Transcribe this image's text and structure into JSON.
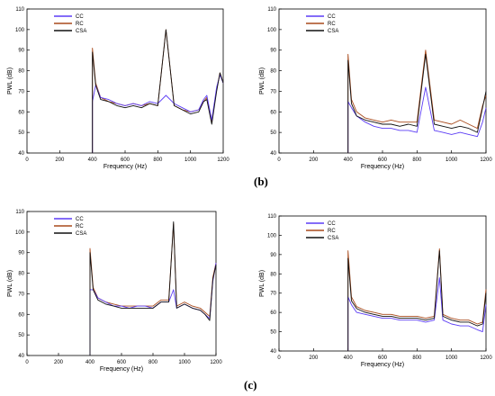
{
  "captions": [
    "(b)",
    "(c)"
  ],
  "colors": {
    "CC": "#5b3cf5",
    "RC": "#a84a1c",
    "CSA": "#111111"
  },
  "chart_data": [
    {
      "type": "line",
      "xlabel": "Frequency (Hz)",
      "ylabel": "PWL (dB)",
      "xlim": [
        0,
        1200
      ],
      "ylim": [
        40,
        110
      ],
      "xticks": [
        0,
        200,
        400,
        600,
        800,
        1000,
        1200
      ],
      "yticks": [
        40,
        50,
        60,
        70,
        80,
        90,
        100,
        110
      ],
      "grid": false,
      "legend": "top-left",
      "series": [
        {
          "name": "CC",
          "x": [
            400,
            420,
            450,
            500,
            550,
            600,
            650,
            700,
            750,
            800,
            850,
            900,
            950,
            1000,
            1050,
            1080,
            1100,
            1130,
            1160,
            1180,
            1200
          ],
          "y": [
            65,
            73,
            67,
            66,
            64,
            63,
            64,
            63,
            65,
            64,
            68,
            64,
            62,
            60,
            61,
            66,
            68,
            56,
            72,
            78,
            74
          ]
        },
        {
          "name": "RC",
          "x": [
            400,
            420,
            450,
            500,
            550,
            600,
            650,
            700,
            750,
            800,
            850,
            900,
            950,
            1000,
            1050,
            1080,
            1100,
            1130,
            1160,
            1180,
            1200
          ],
          "y": [
            91,
            74,
            67,
            65,
            64,
            63,
            64,
            63,
            64,
            63,
            100,
            63,
            61,
            60,
            61,
            65,
            67,
            55,
            71,
            79,
            74
          ]
        },
        {
          "name": "CSA",
          "x": [
            400,
            420,
            450,
            500,
            550,
            600,
            650,
            700,
            750,
            800,
            850,
            900,
            950,
            1000,
            1050,
            1080,
            1100,
            1130,
            1160,
            1180,
            1200
          ],
          "y": [
            89,
            73,
            66,
            65,
            63,
            62,
            63,
            62,
            64,
            63,
            100,
            63,
            61,
            59,
            60,
            65,
            66,
            54,
            70,
            79,
            74
          ]
        }
      ]
    },
    {
      "type": "line",
      "xlabel": "Frequency (Hz)",
      "ylabel": "PWL (dB)",
      "xlim": [
        0,
        1200
      ],
      "ylim": [
        40,
        110
      ],
      "xticks": [
        0,
        200,
        400,
        600,
        800,
        1000,
        1200
      ],
      "yticks": [
        40,
        50,
        60,
        70,
        80,
        90,
        100,
        110
      ],
      "grid": false,
      "legend": "top-left",
      "series": [
        {
          "name": "CC",
          "x": [
            400,
            420,
            450,
            500,
            550,
            600,
            650,
            700,
            750,
            800,
            850,
            900,
            950,
            1000,
            1050,
            1100,
            1150,
            1180,
            1200
          ],
          "y": [
            65,
            62,
            58,
            55,
            53,
            52,
            52,
            51,
            51,
            50,
            72,
            51,
            50,
            49,
            50,
            49,
            48,
            55,
            62
          ]
        },
        {
          "name": "RC",
          "x": [
            400,
            420,
            450,
            500,
            550,
            600,
            650,
            700,
            750,
            800,
            850,
            900,
            950,
            1000,
            1050,
            1100,
            1150,
            1180,
            1200
          ],
          "y": [
            88,
            66,
            60,
            57,
            56,
            55,
            56,
            55,
            55,
            55,
            90,
            56,
            55,
            54,
            56,
            54,
            52,
            63,
            68
          ]
        },
        {
          "name": "CSA",
          "x": [
            400,
            420,
            450,
            500,
            550,
            600,
            650,
            700,
            750,
            800,
            850,
            900,
            950,
            1000,
            1050,
            1100,
            1150,
            1180,
            1200
          ],
          "y": [
            85,
            64,
            58,
            56,
            55,
            54,
            54,
            53,
            54,
            53,
            88,
            54,
            53,
            52,
            53,
            52,
            50,
            62,
            70
          ]
        }
      ]
    },
    {
      "type": "line",
      "xlabel": "Frequency (Hz)",
      "ylabel": "PWL (dB)",
      "xlim": [
        0,
        1200
      ],
      "ylim": [
        40,
        110
      ],
      "xticks": [
        0,
        200,
        400,
        600,
        800,
        1000,
        1200
      ],
      "yticks": [
        40,
        50,
        60,
        70,
        80,
        90,
        100,
        110
      ],
      "grid": false,
      "legend": "top-left",
      "series": [
        {
          "name": "CC",
          "x": [
            400,
            420,
            450,
            500,
            550,
            600,
            650,
            700,
            750,
            800,
            850,
            900,
            930,
            950,
            1000,
            1050,
            1100,
            1130,
            1160,
            1180,
            1200
          ],
          "y": [
            72,
            72,
            68,
            66,
            64,
            64,
            63,
            64,
            64,
            63,
            66,
            66,
            72,
            63,
            65,
            63,
            62,
            60,
            58,
            76,
            85
          ]
        },
        {
          "name": "RC",
          "x": [
            400,
            420,
            450,
            500,
            550,
            600,
            650,
            700,
            750,
            800,
            850,
            900,
            930,
            950,
            1000,
            1050,
            1100,
            1130,
            1160,
            1180,
            1200
          ],
          "y": [
            92,
            73,
            68,
            66,
            65,
            64,
            64,
            64,
            64,
            64,
            67,
            67,
            104,
            64,
            66,
            64,
            63,
            61,
            59,
            78,
            85
          ]
        },
        {
          "name": "CSA",
          "x": [
            400,
            420,
            450,
            500,
            550,
            600,
            650,
            700,
            750,
            800,
            850,
            900,
            930,
            950,
            1000,
            1050,
            1100,
            1130,
            1160,
            1180,
            1200
          ],
          "y": [
            90,
            72,
            67,
            65,
            64,
            63,
            63,
            63,
            63,
            63,
            66,
            66,
            105,
            63,
            65,
            63,
            62,
            60,
            57,
            77,
            84
          ]
        }
      ]
    },
    {
      "type": "line",
      "xlabel": "Frequency (Hz)",
      "ylabel": "PWL (dB)",
      "xlim": [
        0,
        1200
      ],
      "ylim": [
        40,
        110
      ],
      "xticks": [
        0,
        200,
        400,
        600,
        800,
        1000,
        1200
      ],
      "yticks": [
        40,
        50,
        60,
        70,
        80,
        90,
        100,
        110
      ],
      "grid": false,
      "legend": "top-left",
      "series": [
        {
          "name": "CC",
          "x": [
            400,
            420,
            450,
            500,
            550,
            600,
            650,
            700,
            750,
            800,
            850,
            900,
            930,
            950,
            1000,
            1050,
            1100,
            1150,
            1180,
            1200
          ],
          "y": [
            68,
            64,
            60,
            59,
            58,
            57,
            57,
            56,
            56,
            56,
            55,
            56,
            78,
            56,
            54,
            53,
            53,
            51,
            50,
            64
          ]
        },
        {
          "name": "RC",
          "x": [
            400,
            420,
            450,
            500,
            550,
            600,
            650,
            700,
            750,
            800,
            850,
            900,
            930,
            950,
            1000,
            1050,
            1100,
            1150,
            1180,
            1200
          ],
          "y": [
            92,
            68,
            63,
            61,
            60,
            59,
            59,
            58,
            58,
            58,
            57,
            58,
            93,
            59,
            57,
            56,
            56,
            54,
            55,
            72
          ]
        },
        {
          "name": "CSA",
          "x": [
            400,
            420,
            450,
            500,
            550,
            600,
            650,
            700,
            750,
            800,
            850,
            900,
            930,
            950,
            1000,
            1050,
            1100,
            1150,
            1180,
            1200
          ],
          "y": [
            88,
            66,
            62,
            60,
            59,
            58,
            58,
            57,
            57,
            57,
            56,
            57,
            92,
            58,
            56,
            55,
            55,
            53,
            54,
            70
          ]
        }
      ]
    }
  ]
}
